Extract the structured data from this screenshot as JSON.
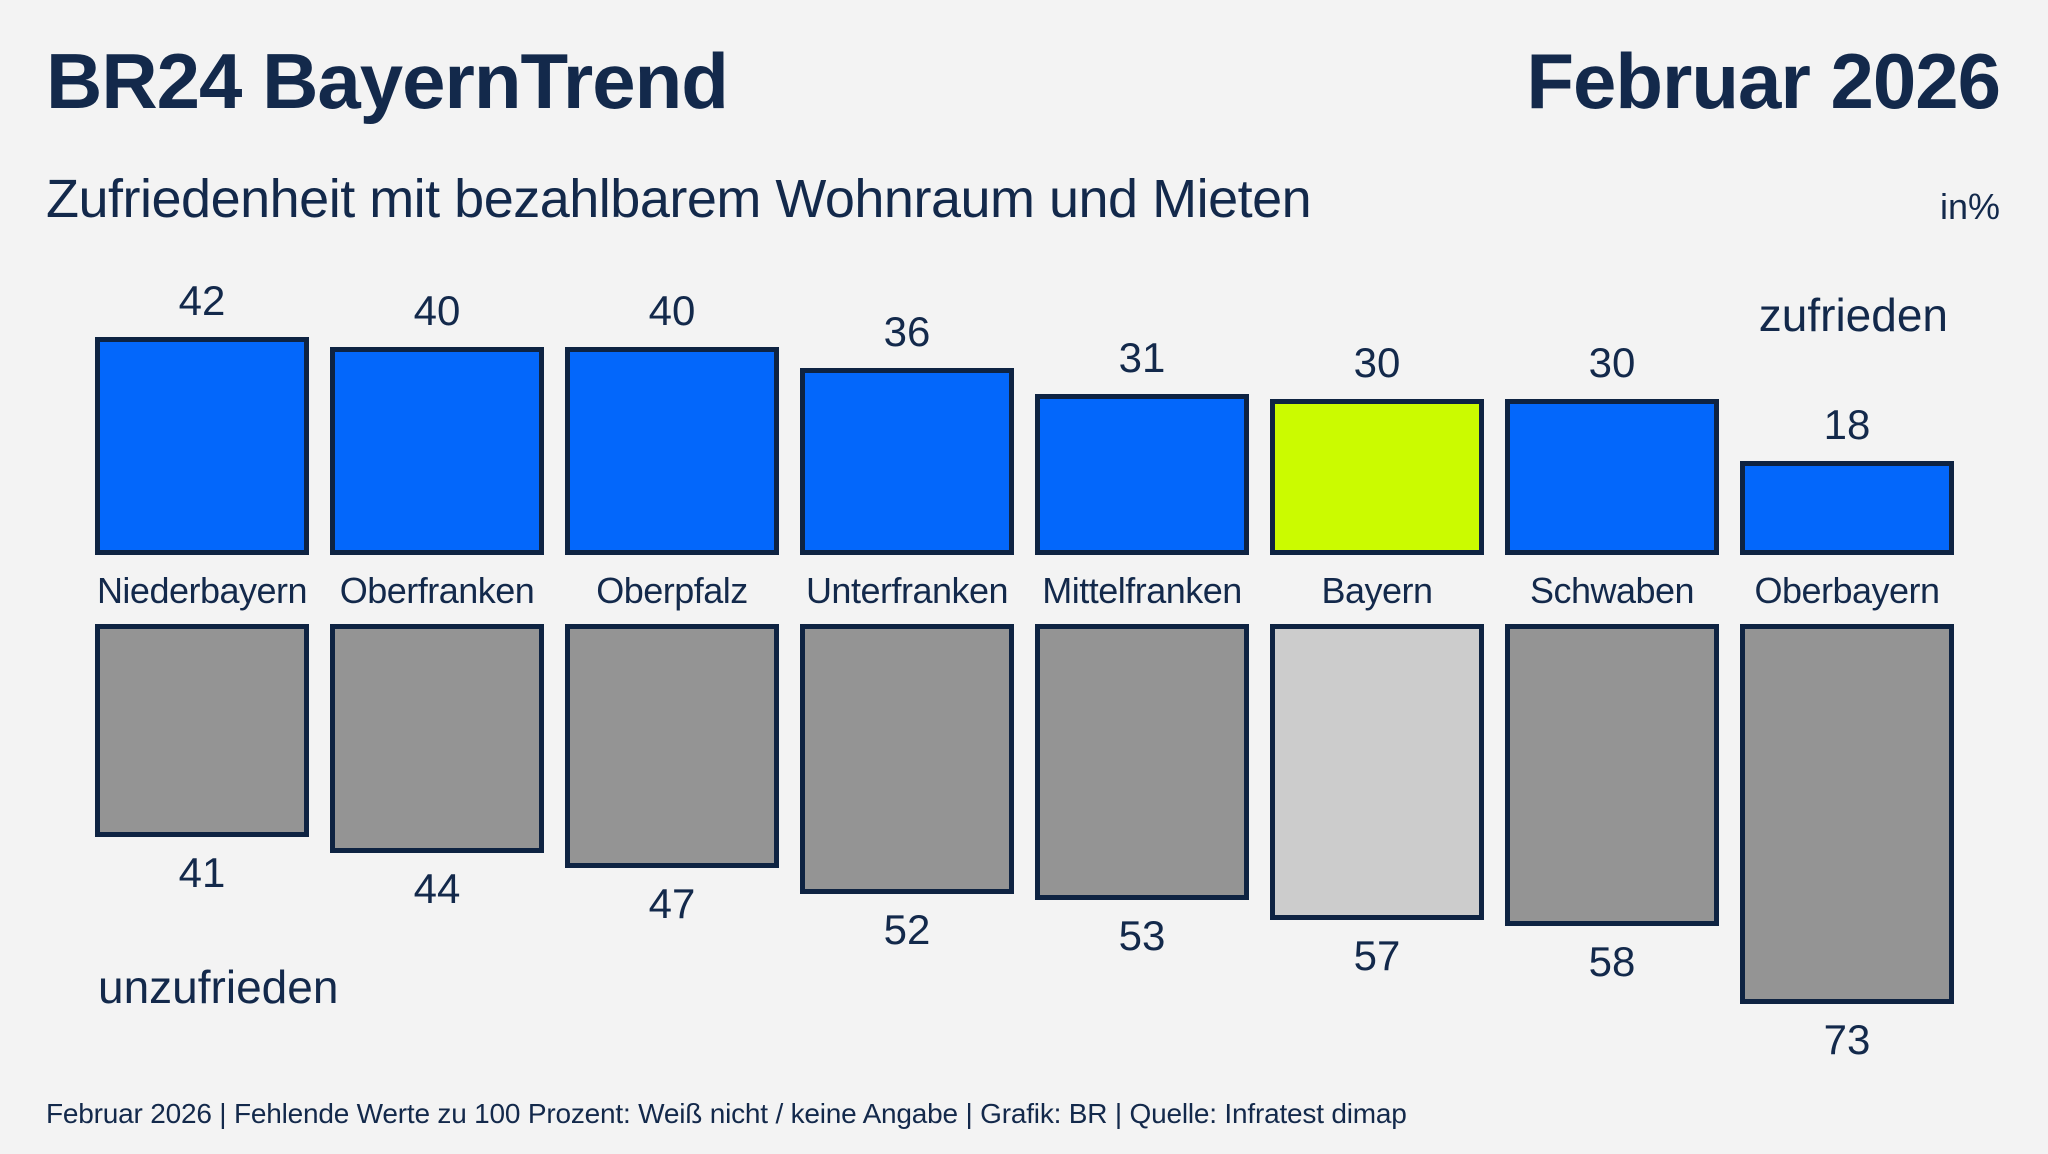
{
  "header": {
    "title": "BR24 BayernTrend",
    "date": "Februar 2026",
    "subtitle": "Zufriedenheit mit bezahlbarem Wohnraum und Mieten",
    "unit": "in%"
  },
  "chart_data": {
    "type": "bar",
    "categories": [
      "Niederbayern",
      "Oberfranken",
      "Oberpfalz",
      "Unterfranken",
      "Mittelfranken",
      "Bayern",
      "Schwaben",
      "Oberbayern"
    ],
    "series": [
      {
        "name": "zufrieden",
        "values": [
          42,
          40,
          40,
          36,
          31,
          30,
          30,
          18
        ]
      },
      {
        "name": "unzufrieden",
        "values": [
          41,
          44,
          47,
          52,
          53,
          57,
          58,
          73
        ]
      }
    ],
    "highlight_category": "Bayern",
    "legend": {
      "top": "zufrieden",
      "bottom": "unzufrieden"
    },
    "colors": {
      "satisfied": "#0367fb",
      "satisfied_highlight": "#cbfb00",
      "unsatisfied": "#949494",
      "unsatisfied_highlight": "#cccccc",
      "bar_border": "#0e2342",
      "text": "#13294b",
      "background": "#f3f3f3"
    },
    "layout_hints": {
      "orientation": "diverging-columns",
      "value_labels": "outside",
      "grid": false
    }
  },
  "footer": {
    "text": "Februar 2026 | Fehlende Werte zu 100 Prozent: Weiß nicht / keine Angabe | Grafik: BR | Quelle: Infratest dimap"
  }
}
